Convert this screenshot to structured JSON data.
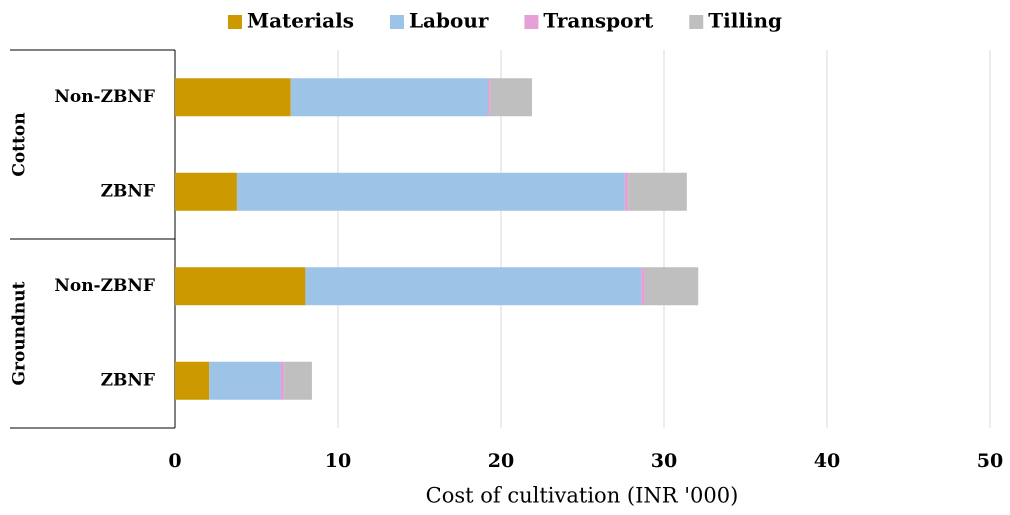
{
  "chart_data": {
    "type": "stacked-bar-horizontal",
    "x_label": "Cost of cultivation (INR '000)",
    "groups": [
      {
        "name": "Cotton",
        "categories": [
          "Non-ZBNF",
          "ZBNF"
        ]
      },
      {
        "name": "Groundnut",
        "categories": [
          "Non-ZBNF",
          "ZBNF"
        ]
      }
    ],
    "series": [
      {
        "name": "Materials",
        "color": "#cc9a00",
        "values": [
          7.1,
          3.8,
          8.0,
          2.1
        ]
      },
      {
        "name": "Labour",
        "color": "#9dc3e6",
        "values": [
          12.1,
          23.8,
          20.6,
          4.4
        ]
      },
      {
        "name": "Transport",
        "color": "#e6a0d8",
        "values": [
          0.1,
          0.2,
          0.2,
          0.2
        ]
      },
      {
        "name": "Tilling",
        "color": "#bfbfbf",
        "values": [
          2.6,
          3.6,
          3.3,
          1.7
        ]
      }
    ],
    "xlim": [
      0,
      50
    ],
    "xticks": [
      0,
      10,
      20,
      30,
      40,
      50
    ],
    "grid": true,
    "legend": "top"
  }
}
